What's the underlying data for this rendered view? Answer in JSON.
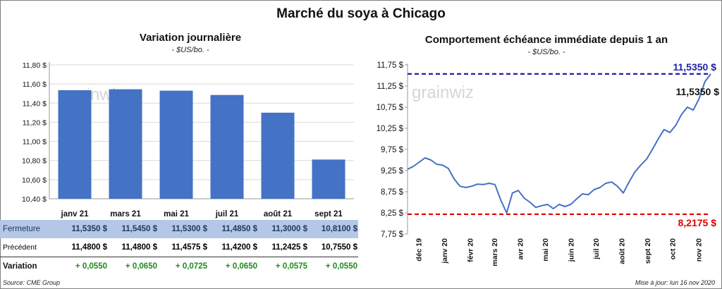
{
  "title": "Marché du soya à Chicago",
  "left_panel": {
    "title": "Variation  journalière",
    "unit": "- $US/bo. -"
  },
  "right_panel": {
    "title": "Comportement  échéance immédiate depuis 1 an",
    "unit": "- $US/bo. -"
  },
  "watermark": "grainwiz",
  "table": {
    "rows": [
      {
        "label": "Fermeture",
        "values": [
          "11,5350  $",
          "11,5450  $",
          "11,5300  $",
          "11,4850  $",
          "11,3000  $",
          "10,8100  $"
        ]
      },
      {
        "label": "Précédent",
        "values": [
          "11,4800  $",
          "11,4800  $",
          "11,4575  $",
          "11,4200  $",
          "11,2425  $",
          "10,7550  $"
        ]
      },
      {
        "label": "Variation",
        "values": [
          "+ 0,0550",
          "+ 0,0650",
          "+ 0,0725",
          "+ 0,0650",
          "+ 0,0575",
          "+ 0,0550"
        ]
      }
    ]
  },
  "footer": {
    "source": "Source: CME Group",
    "updated": "Mise à jour: lun 16 nov 2020"
  },
  "colors": {
    "bar": "#4472c4",
    "line": "#4472c4",
    "high": "#1f1fa8",
    "low": "#e00000",
    "highlight_row": "#b4c7e7",
    "positive": "#1e8a1e"
  },
  "chart_data": [
    {
      "type": "bar",
      "categories": [
        "janv 21",
        "mars 21",
        "mai 21",
        "juil 21",
        "août 21",
        "sept 21"
      ],
      "values": [
        11.535,
        11.545,
        11.53,
        11.485,
        11.3,
        10.81
      ],
      "ylim": [
        10.4,
        11.8
      ],
      "yticks": [
        10.4,
        10.6,
        10.8,
        11.0,
        11.2,
        11.4,
        11.6,
        11.8
      ],
      "ytick_labels": [
        "10,40 $",
        "10,60 $",
        "10,80 $",
        "11,00 $",
        "11,20 $",
        "11,40 $",
        "11,60 $",
        "11,80 $"
      ],
      "grid": true
    },
    {
      "type": "line",
      "ylim": [
        7.75,
        11.75
      ],
      "yticks": [
        7.75,
        8.25,
        8.75,
        9.25,
        9.75,
        10.25,
        10.75,
        11.25,
        11.75
      ],
      "ytick_labels": [
        "7,75 $",
        "8,25 $",
        "8,75 $",
        "9,25 $",
        "9,75 $",
        "10,25 $",
        "10,75 $",
        "11,25 $",
        "11,75 $"
      ],
      "xtick_labels": [
        "déc 19",
        "janv 20",
        "févr 20",
        "mars 20",
        "avr 20",
        "mai 20",
        "juin 20",
        "juil 20",
        "août 20",
        "sept 20",
        "oct 20",
        "nov 20"
      ],
      "xlim": [
        "2019-11-18",
        "2020-11-16"
      ],
      "xtick_dates": [
        "2019-12-01",
        "2020-01-01",
        "2020-02-01",
        "2020-03-01",
        "2020-04-01",
        "2020-05-01",
        "2020-06-01",
        "2020-07-01",
        "2020-08-01",
        "2020-09-01",
        "2020-10-01",
        "2020-11-01"
      ],
      "grid": false,
      "reference_lines": [
        {
          "label": "11,5350  $",
          "value": 11.535,
          "color": "#1f1fa8",
          "style": "dashed"
        },
        {
          "label": "8,2175  $",
          "value": 8.2175,
          "color": "#e00000",
          "style": "dashed"
        }
      ],
      "end_label": "11,5350 $",
      "series": [
        {
          "dates": [
            "2019-11-18",
            "2019-11-25",
            "2019-12-02",
            "2019-12-09",
            "2019-12-16",
            "2019-12-23",
            "2019-12-30",
            "2020-01-06",
            "2020-01-13",
            "2020-01-20",
            "2020-01-27",
            "2020-02-03",
            "2020-02-10",
            "2020-02-17",
            "2020-02-24",
            "2020-03-02",
            "2020-03-09",
            "2020-03-16",
            "2020-03-23",
            "2020-03-30",
            "2020-04-06",
            "2020-04-13",
            "2020-04-20",
            "2020-04-27",
            "2020-05-04",
            "2020-05-11",
            "2020-05-18",
            "2020-05-25",
            "2020-06-01",
            "2020-06-08",
            "2020-06-15",
            "2020-06-22",
            "2020-06-29",
            "2020-07-06",
            "2020-07-13",
            "2020-07-20",
            "2020-07-27",
            "2020-08-03",
            "2020-08-10",
            "2020-08-17",
            "2020-08-24",
            "2020-08-31",
            "2020-09-07",
            "2020-09-14",
            "2020-09-21",
            "2020-09-28",
            "2020-10-05",
            "2020-10-12",
            "2020-10-19",
            "2020-10-26",
            "2020-11-02",
            "2020-11-09",
            "2020-11-16"
          ],
          "values": [
            9.28,
            9.35,
            9.45,
            9.55,
            9.5,
            9.4,
            9.38,
            9.3,
            9.05,
            8.88,
            8.85,
            8.88,
            8.93,
            8.92,
            8.95,
            8.92,
            8.55,
            8.25,
            8.72,
            8.78,
            8.6,
            8.5,
            8.38,
            8.42,
            8.45,
            8.35,
            8.45,
            8.4,
            8.45,
            8.58,
            8.7,
            8.68,
            8.8,
            8.85,
            8.95,
            8.98,
            8.88,
            8.72,
            8.98,
            9.22,
            9.38,
            9.52,
            9.75,
            10.0,
            10.22,
            10.15,
            10.32,
            10.58,
            10.75,
            10.68,
            10.95,
            11.35,
            11.535
          ]
        }
      ]
    }
  ]
}
